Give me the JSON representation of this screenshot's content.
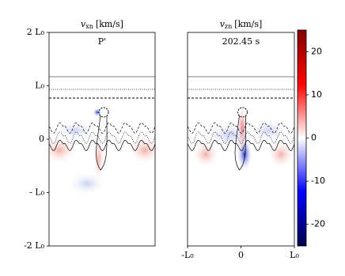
{
  "chart_data": [
    {
      "type": "heatmap",
      "title": {
        "symbol": "v",
        "subscript": "xn",
        "unit": "[km/s]"
      },
      "label": "P'",
      "xlim": [
        -1,
        1
      ],
      "ylim": [
        -2,
        2
      ],
      "yticks": [
        {
          "value": 2,
          "label": "2 L₀"
        },
        {
          "value": 1,
          "label": "L₀"
        },
        0,
        {
          "value": -1,
          "label": "- L₀"
        },
        {
          "value": -2,
          "label": "-2 L₀"
        }
      ],
      "xticks": []
    },
    {
      "type": "heatmap",
      "title": {
        "symbol": "v",
        "subscript": "zn",
        "unit": "[km/s]"
      },
      "label": "202.45 s",
      "xlim": [
        -1,
        1
      ],
      "ylim": [
        -2,
        2
      ],
      "yticks": [],
      "xticks": [
        {
          "value": -1,
          "label": "-L₀"
        },
        0,
        {
          "value": 1,
          "label": "L₀"
        }
      ]
    },
    {
      "type": "colorbar",
      "clim": [
        -25,
        25
      ],
      "ticks": [
        -20,
        -10,
        0,
        10,
        20
      ],
      "colors": [
        "#00004c",
        "#0000ff",
        "#ffffff",
        "#ff0000",
        "#800000"
      ]
    }
  ]
}
